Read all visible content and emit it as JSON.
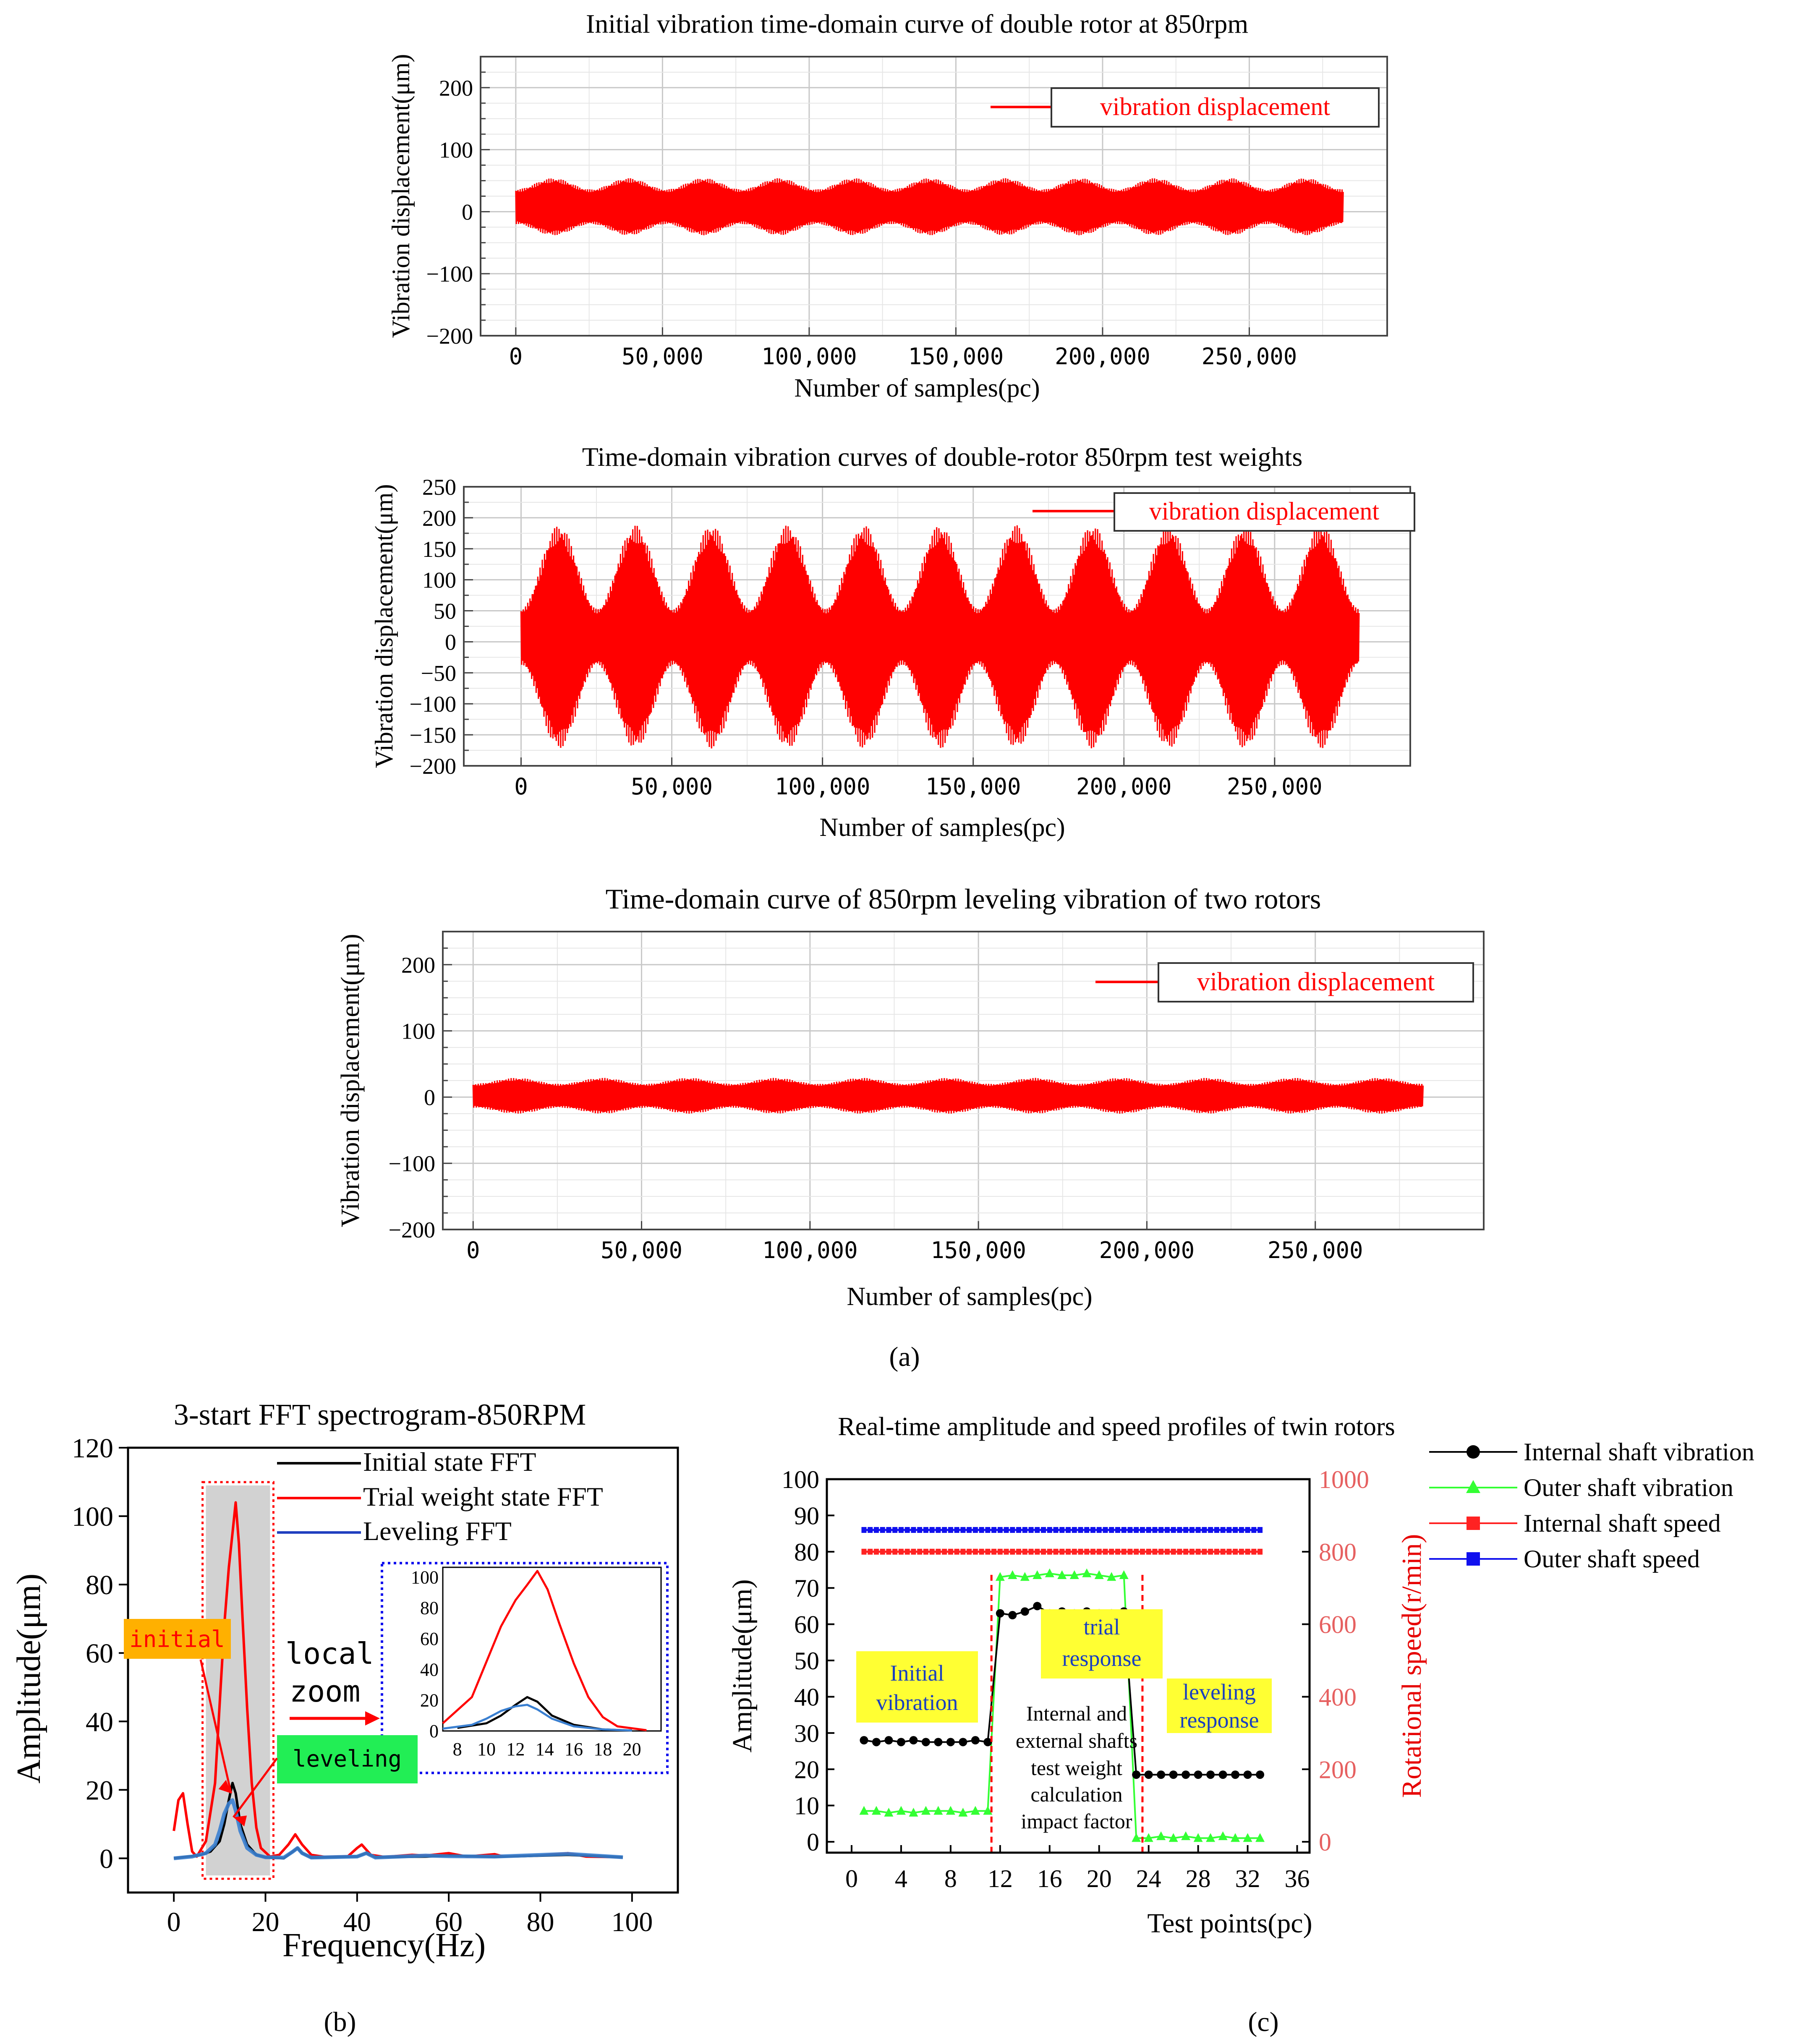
{
  "colors": {
    "red": "#ff0000",
    "black": "#000000",
    "blue": "#1f3fbf",
    "fft_blue": "#3a7fd0",
    "green": "#33ff33",
    "yellow": "#ffff33",
    "orange": "#ffb000",
    "leveling_green": "#22ee55",
    "axis_red": "#e60000"
  },
  "captions": {
    "a": "(a)",
    "b": "(b)",
    "c": "(c)"
  },
  "chart_data": [
    {
      "id": "time1",
      "type": "line",
      "title": "Initial vibration time-domain curve of double rotor at 850rpm",
      "xlabel": "Number of samples(pc)",
      "ylabel": "Vibration displacement(μm)",
      "xlim": [
        -12000,
        297000
      ],
      "ylim": [
        -200,
        250
      ],
      "xticks": [
        0,
        50000,
        100000,
        150000,
        200000,
        250000
      ],
      "xtick_labels": [
        "0",
        "50,000",
        "100,000",
        "150,000",
        "200,000",
        "250,000"
      ],
      "yticks": [
        -200,
        -100,
        0,
        100,
        200
      ],
      "ytick_labels": [
        "−200",
        "−100",
        "0",
        "100",
        "200"
      ],
      "legend": [
        "vibration displacement"
      ],
      "series": [
        {
          "name": "vibration displacement",
          "x_range": [
            0,
            282000
          ],
          "offset": 8,
          "amp_min": 28,
          "amp_max": 46,
          "beats": 11
        }
      ]
    },
    {
      "id": "time2",
      "type": "line",
      "title": "Time-domain vibration curves of double-rotor 850rpm test weights",
      "xlabel": "Number of samples(pc)",
      "ylabel": "Vibration displacement(μm)",
      "xlim": [
        -19000,
        295000
      ],
      "ylim": [
        -200,
        250
      ],
      "xticks": [
        0,
        50000,
        100000,
        150000,
        200000,
        250000
      ],
      "xtick_labels": [
        "0",
        "50,000",
        "100,000",
        "150,000",
        "200,000",
        "250,000"
      ],
      "yticks": [
        -200,
        -150,
        -100,
        -50,
        0,
        50,
        100,
        150,
        200,
        250
      ],
      "ytick_labels": [
        "−200",
        "−150",
        "−100",
        "−50",
        "0",
        "50",
        "100",
        "150",
        "200",
        "250"
      ],
      "legend": [
        "vibration displacement"
      ],
      "series": [
        {
          "name": "vibration displacement",
          "x_range": [
            0,
            278000
          ],
          "offset": 8,
          "amp_min": 45,
          "amp_max": 180,
          "beats": 11
        }
      ]
    },
    {
      "id": "time3",
      "type": "line",
      "title": "Time-domain curve of 850rpm leveling vibration of two rotors",
      "xlabel": "Number of samples(pc)",
      "ylabel": "Vibration displacement(μm)",
      "xlim": [
        -9000,
        300000
      ],
      "ylim": [
        -200,
        250
      ],
      "xticks": [
        0,
        50000,
        100000,
        150000,
        200000,
        250000
      ],
      "xtick_labels": [
        "0",
        "50,000",
        "100,000",
        "150,000",
        "200,000",
        "250,000"
      ],
      "yticks": [
        -200,
        -100,
        0,
        100,
        200
      ],
      "ytick_labels": [
        "−200",
        "−100",
        "0",
        "100",
        "200"
      ],
      "legend": [
        "vibration displacement"
      ],
      "series": [
        {
          "name": "vibration displacement",
          "x_range": [
            0,
            282000
          ],
          "offset": 2,
          "amp_min": 18,
          "amp_max": 27,
          "beats": 11
        }
      ]
    },
    {
      "id": "fft",
      "type": "line",
      "title": "3-start FFT spectrogram-850RPM",
      "xlabel": "Frequency(Hz)",
      "ylabel": "Amplitude(μm)",
      "xlim": [
        -10,
        110
      ],
      "ylim": [
        -10,
        120
      ],
      "xticks": [
        0,
        20,
        40,
        60,
        80,
        100
      ],
      "xtick_labels": [
        "0",
        "20",
        "40",
        "60",
        "80",
        "100"
      ],
      "yticks": [
        0,
        20,
        40,
        60,
        80,
        100,
        120
      ],
      "ytick_labels": [
        "0",
        "20",
        "40",
        "60",
        "80",
        "100",
        "120"
      ],
      "series": [
        {
          "name": "Initial state FFT",
          "color": "#000000",
          "points": [
            [
              0,
              0
            ],
            [
              3,
              0.5
            ],
            [
              6,
              1
            ],
            [
              8,
              2
            ],
            [
              10,
              5
            ],
            [
              11,
              10
            ],
            [
              12,
              17
            ],
            [
              12.8,
              22
            ],
            [
              13.5,
              19
            ],
            [
              14.5,
              10
            ],
            [
              16,
              4
            ],
            [
              18,
              1
            ],
            [
              20,
              0.3
            ],
            [
              24,
              0
            ],
            [
              26,
              2
            ],
            [
              27,
              3
            ],
            [
              28,
              1.5
            ],
            [
              30,
              0.2
            ],
            [
              40,
              0.5
            ],
            [
              42,
              1.5
            ],
            [
              44,
              0.3
            ],
            [
              55,
              0.5
            ],
            [
              60,
              0.8
            ],
            [
              70,
              0.4
            ],
            [
              86,
              1
            ],
            [
              98,
              0.3
            ]
          ]
        },
        {
          "name": "Trial weight state FFT",
          "color": "#ff0000",
          "points": [
            [
              0,
              8
            ],
            [
              1,
              17
            ],
            [
              2,
              19
            ],
            [
              3,
              10
            ],
            [
              4,
              2
            ],
            [
              5,
              0.5
            ],
            [
              7,
              5
            ],
            [
              9,
              22
            ],
            [
              10,
              45
            ],
            [
              11,
              68
            ],
            [
              12,
              85
            ],
            [
              12.8,
              95
            ],
            [
              13.5,
              104
            ],
            [
              14.2,
              92
            ],
            [
              15,
              70
            ],
            [
              16,
              44
            ],
            [
              17,
              22
            ],
            [
              18,
              9
            ],
            [
              19,
              3
            ],
            [
              21,
              0.5
            ],
            [
              23,
              1
            ],
            [
              25,
              4
            ],
            [
              26.5,
              7
            ],
            [
              28,
              4
            ],
            [
              30,
              1
            ],
            [
              33,
              0.4
            ],
            [
              38,
              0.6
            ],
            [
              40,
              3
            ],
            [
              41,
              4
            ],
            [
              43,
              1
            ],
            [
              46,
              0.4
            ],
            [
              52,
              1
            ],
            [
              55,
              0.8
            ],
            [
              60,
              1.5
            ],
            [
              64,
              0.5
            ],
            [
              70,
              1.2
            ],
            [
              72,
              0.5
            ],
            [
              80,
              0.8
            ],
            [
              86,
              1.5
            ],
            [
              90,
              0.5
            ],
            [
              98,
              0.3
            ]
          ]
        },
        {
          "name": "Leveling FFT",
          "color": "#3a7fd0",
          "points": [
            [
              0,
              0
            ],
            [
              4,
              0.5
            ],
            [
              7,
              1.5
            ],
            [
              9,
              4
            ],
            [
              10,
              8
            ],
            [
              11,
              13
            ],
            [
              12,
              16
            ],
            [
              12.8,
              17
            ],
            [
              13.5,
              14
            ],
            [
              14.5,
              8
            ],
            [
              16,
              3
            ],
            [
              18,
              1
            ],
            [
              20,
              0.3
            ],
            [
              24,
              0.2
            ],
            [
              26,
              2
            ],
            [
              27,
              3
            ],
            [
              28,
              1.5
            ],
            [
              30,
              0.2
            ],
            [
              40,
              0.5
            ],
            [
              42,
              1.5
            ],
            [
              44,
              0.2
            ],
            [
              55,
              0.8
            ],
            [
              60,
              0.6
            ],
            [
              70,
              0.5
            ],
            [
              86,
              1.3
            ],
            [
              98,
              0.3
            ]
          ]
        }
      ],
      "legend": [
        "Initial state FFT",
        "Trial weight state FFT",
        "Leveling FFT"
      ],
      "highlight_x": [
        7,
        21
      ],
      "inset": {
        "xlim": [
          7,
          22
        ],
        "ylim": [
          0,
          105
        ],
        "xticks": [
          8,
          10,
          12,
          14,
          16,
          18,
          20
        ],
        "xtick_labels": [
          "8",
          "10",
          "12",
          "14",
          "16",
          "18",
          "20"
        ],
        "yticks": [
          0,
          20,
          40,
          60,
          80,
          100
        ],
        "ytick_labels": [
          "0",
          "20",
          "40",
          "60",
          "80",
          "100"
        ]
      },
      "annotations": {
        "initial": "initial",
        "leveling": "leveling",
        "local": "local",
        "zoom": "zoom"
      }
    },
    {
      "id": "realtime",
      "type": "line",
      "title": "Real-time amplitude and speed profiles of twin rotors",
      "xlabel": "Test points(pc)",
      "ylabel": "Amplitude(μm)",
      "ylabel_right": "Rotational speed(r/min)",
      "xlim": [
        -2,
        37
      ],
      "ylim": [
        -3,
        100
      ],
      "ylim_right": [
        -30,
        1000
      ],
      "xticks": [
        0,
        4,
        8,
        12,
        16,
        20,
        24,
        28,
        32,
        36
      ],
      "xtick_labels": [
        "0",
        "4",
        "8",
        "12",
        "16",
        "20",
        "24",
        "28",
        "32",
        "36"
      ],
      "yticks": [
        0,
        10,
        20,
        30,
        40,
        50,
        60,
        70,
        80,
        90,
        100
      ],
      "ytick_labels": [
        "0",
        "10",
        "20",
        "30",
        "40",
        "50",
        "60",
        "70",
        "80",
        "90",
        "100"
      ],
      "yticks_right": [
        0,
        200,
        400,
        600,
        800,
        1000
      ],
      "ytick_labels_right": [
        "0",
        "200",
        "400",
        "600",
        "800",
        "1000"
      ],
      "legend": [
        "Internal shaft vibration",
        "Outer shaft vibration",
        "Internal shaft speed",
        "Outer shaft speed"
      ],
      "series": [
        {
          "name": "Internal shaft vibration",
          "color": "#000000",
          "marker": "circle",
          "x": [
            1,
            2,
            3,
            4,
            5,
            6,
            7,
            8,
            9,
            10,
            11,
            12,
            13,
            14,
            15,
            16,
            17,
            18,
            19,
            20,
            21,
            22,
            23,
            24,
            25,
            26,
            27,
            28,
            29,
            30,
            31,
            32,
            33
          ],
          "y": [
            28,
            27.5,
            28,
            27.5,
            28,
            27.5,
            27.5,
            27.5,
            27.5,
            28,
            27.5,
            63,
            62.5,
            63.5,
            65,
            63,
            63.5,
            63,
            63.5,
            63,
            63,
            63.5,
            18.5,
            18.5,
            18.5,
            18.5,
            18.5,
            18.5,
            18.5,
            18.5,
            18.5,
            18.5,
            18.5
          ]
        },
        {
          "name": "Outer shaft vibration",
          "color": "#33ff33",
          "marker": "triangle",
          "x": [
            1,
            2,
            3,
            4,
            5,
            6,
            7,
            8,
            9,
            10,
            11,
            12,
            13,
            14,
            15,
            16,
            17,
            18,
            19,
            20,
            21,
            22,
            23,
            24,
            25,
            26,
            27,
            28,
            29,
            30,
            31,
            32,
            33
          ],
          "y": [
            8.5,
            8.5,
            8,
            8.5,
            8,
            8.5,
            8.5,
            8.5,
            8,
            8.5,
            8.5,
            73,
            73.5,
            73,
            73.5,
            74,
            73.5,
            73.5,
            74,
            73.5,
            73,
            73.5,
            1,
            1,
            1.5,
            1,
            1.5,
            1,
            1,
            1.5,
            1,
            1,
            1
          ]
        },
        {
          "name": "Internal shaft speed",
          "color": "#ff2222",
          "marker": "square",
          "axis": "right",
          "x_range": [
            1,
            33
          ],
          "value": 800
        },
        {
          "name": "Outer shaft speed",
          "color": "#1010ee",
          "marker": "square",
          "axis": "right",
          "x_range": [
            1,
            33
          ],
          "value": 860
        }
      ],
      "vlines_x": [
        11.3,
        23.5
      ],
      "labels": {
        "initial_line1": "Initial",
        "initial_line2": "vibration",
        "trial_line1": "trial",
        "trial_line2": "response",
        "leveling_line1": "leveling",
        "leveling_line2": "response",
        "impact_lines": [
          "Internal and",
          "external shafts",
          "test weight",
          "calculation",
          "impact factor"
        ]
      }
    }
  ]
}
